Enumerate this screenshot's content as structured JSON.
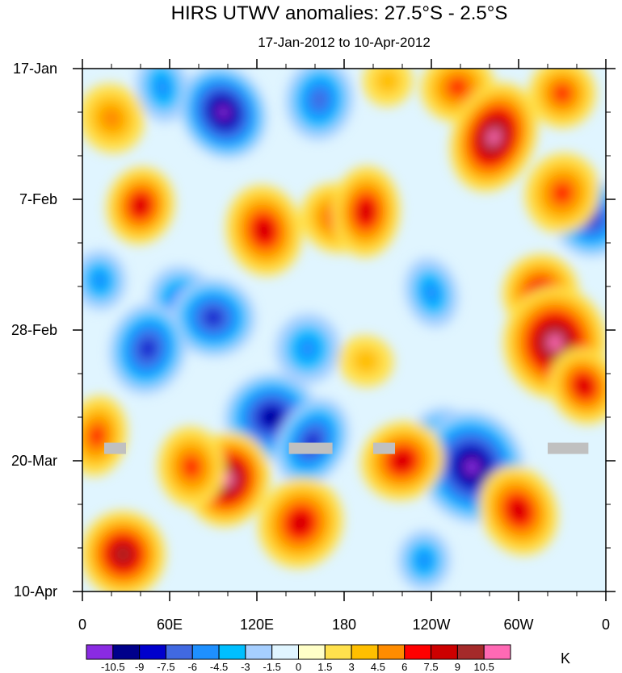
{
  "chart_data": {
    "type": "heatmap",
    "title": "HIRS UTWV anomalies: 27.5°S - 2.5°S",
    "subtitle": "17-Jan-2012 to 10-Apr-2012",
    "xlabel": "",
    "ylabel": "",
    "x_ticks": [
      "0",
      "60E",
      "120E",
      "180",
      "120W",
      "60W",
      "0"
    ],
    "x_range_deg_east": [
      0,
      360
    ],
    "y_ticks": [
      "17-Jan",
      "7-Feb",
      "28-Feb",
      "20-Mar",
      "10-Apr"
    ],
    "y_range": [
      "2012-01-17",
      "2012-04-10"
    ],
    "colorbar": {
      "units": "K",
      "labels": [
        "-10.5",
        "-9",
        "-7.5",
        "-6",
        "-4.5",
        "-3",
        "-1.5",
        "0",
        "1.5",
        "3",
        "4.5",
        "6",
        "7.5",
        "9",
        "10.5"
      ],
      "colors": [
        "#8a2be2",
        "#00008b",
        "#0000cd",
        "#4169e1",
        "#1e90ff",
        "#00bfff",
        "#a6cfff",
        "#e0f5ff",
        "#ffffc8",
        "#ffe14d",
        "#ffbf00",
        "#ff8c00",
        "#ff0000",
        "#cd0000",
        "#a52a2a",
        "#ff69b4"
      ]
    },
    "missing_color": "#c0c0c0",
    "anomaly_centers": [
      {
        "lon": 97,
        "date": "2012-01-24",
        "value": -10.5
      },
      {
        "lon": 163,
        "date": "2012-01-22",
        "value": -6
      },
      {
        "lon": 258,
        "date": "2012-01-20",
        "value": 6
      },
      {
        "lon": 283,
        "date": "2012-01-28",
        "value": 10.5
      },
      {
        "lon": 330,
        "date": "2012-01-21",
        "value": 6
      },
      {
        "lon": 20,
        "date": "2012-01-25",
        "value": 4.5
      },
      {
        "lon": 40,
        "date": "2012-02-08",
        "value": 7.5
      },
      {
        "lon": 125,
        "date": "2012-02-12",
        "value": 7.5
      },
      {
        "lon": 175,
        "date": "2012-02-10",
        "value": 6
      },
      {
        "lon": 195,
        "date": "2012-02-09",
        "value": 7.5
      },
      {
        "lon": 350,
        "date": "2012-02-10",
        "value": -7.5
      },
      {
        "lon": 330,
        "date": "2012-02-06",
        "value": 6
      },
      {
        "lon": 12,
        "date": "2012-02-20",
        "value": -4.5
      },
      {
        "lon": 70,
        "date": "2012-02-24",
        "value": -6
      },
      {
        "lon": 90,
        "date": "2012-02-26",
        "value": -7.5
      },
      {
        "lon": 240,
        "date": "2012-02-22",
        "value": -4.5
      },
      {
        "lon": 315,
        "date": "2012-02-22",
        "value": 7.5
      },
      {
        "lon": 325,
        "date": "2012-03-01",
        "value": 10.5
      },
      {
        "lon": 345,
        "date": "2012-03-08",
        "value": 7.5
      },
      {
        "lon": 45,
        "date": "2012-03-02",
        "value": -7.5
      },
      {
        "lon": 130,
        "date": "2012-03-13",
        "value": -9
      },
      {
        "lon": 158,
        "date": "2012-03-17",
        "value": -7.5
      },
      {
        "lon": 248,
        "date": "2012-03-17",
        "value": -6
      },
      {
        "lon": 268,
        "date": "2012-03-21",
        "value": -10.5
      },
      {
        "lon": 100,
        "date": "2012-03-23",
        "value": 10.5
      },
      {
        "lon": 75,
        "date": "2012-03-21",
        "value": 6
      },
      {
        "lon": 220,
        "date": "2012-03-20",
        "value": 7.5
      },
      {
        "lon": 10,
        "date": "2012-03-16",
        "value": 6
      },
      {
        "lon": 28,
        "date": "2012-04-04",
        "value": 9
      },
      {
        "lon": 150,
        "date": "2012-03-30",
        "value": 7.5
      },
      {
        "lon": 235,
        "date": "2012-04-05",
        "value": -4.5
      },
      {
        "lon": 300,
        "date": "2012-03-28",
        "value": 7.5
      },
      {
        "lon": 195,
        "date": "2012-03-04",
        "value": 3
      },
      {
        "lon": 55,
        "date": "2012-01-20",
        "value": -4.5
      },
      {
        "lon": 210,
        "date": "2012-01-19",
        "value": 3
      },
      {
        "lon": 155,
        "date": "2012-03-02",
        "value": -4.5
      }
    ],
    "missing_segments": [
      {
        "lon": [
          15,
          30
        ],
        "date": "2012-03-18"
      },
      {
        "lon": [
          142,
          172
        ],
        "date": "2012-03-18"
      },
      {
        "lon": [
          200,
          215
        ],
        "date": "2012-03-18"
      },
      {
        "lon": [
          320,
          348
        ],
        "date": "2012-03-18"
      }
    ]
  }
}
